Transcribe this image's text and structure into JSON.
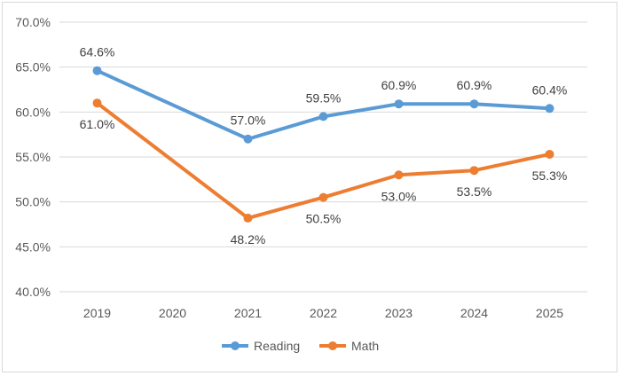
{
  "chart_data": {
    "type": "line",
    "title": "",
    "xlabel": "",
    "ylabel": "",
    "categories": [
      "2019",
      "2020",
      "2021",
      "2022",
      "2023",
      "2024",
      "2025"
    ],
    "ylim": [
      40,
      70
    ],
    "ytick_step": 5,
    "ytick_labels": [
      "40.0%",
      "45.0%",
      "50.0%",
      "55.0%",
      "60.0%",
      "65.0%",
      "70.0%"
    ],
    "grid": true,
    "legend_position": "bottom",
    "series": [
      {
        "name": "Reading",
        "color": "#5B9BD5",
        "values": [
          64.6,
          null,
          57.0,
          59.5,
          60.9,
          60.9,
          60.4
        ],
        "labels": [
          "64.6%",
          null,
          "57.0%",
          "59.5%",
          "60.9%",
          "60.9%",
          "60.4%"
        ],
        "label_side": "above"
      },
      {
        "name": "Math",
        "color": "#ED7D31",
        "values": [
          61.0,
          null,
          48.2,
          50.5,
          53.0,
          53.5,
          55.3
        ],
        "labels": [
          "61.0%",
          null,
          "48.2%",
          "50.5%",
          "53.0%",
          "53.5%",
          "55.3%"
        ],
        "label_side": "below"
      }
    ]
  }
}
